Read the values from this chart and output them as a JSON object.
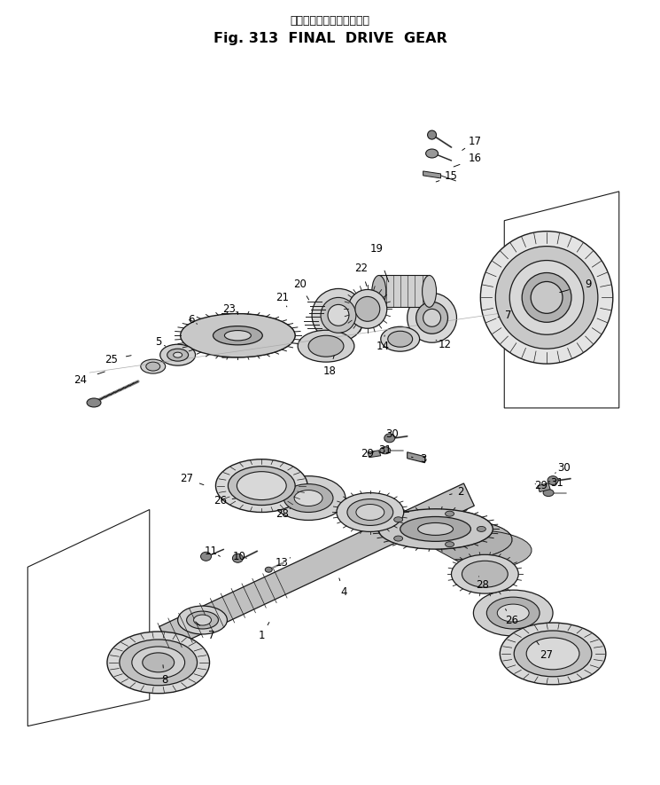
{
  "title_japanese": "ファイナルドライブギヤー",
  "title_english": "Fig. 313  FINAL  DRIVE  GEAR",
  "bg_color": "#ffffff",
  "line_color": "#1a1a1a",
  "fig_width": 7.45,
  "fig_height": 8.85,
  "dpi": 100,
  "upper_labels": [
    [
      "17",
      537,
      158,
      520,
      170
    ],
    [
      "16",
      537,
      178,
      510,
      188
    ],
    [
      "15",
      510,
      198,
      490,
      205
    ],
    [
      "9",
      665,
      320,
      630,
      330
    ],
    [
      "7",
      575,
      355,
      560,
      358
    ],
    [
      "12",
      503,
      388,
      490,
      382
    ],
    [
      "19",
      425,
      280,
      440,
      320
    ],
    [
      "22",
      408,
      302,
      415,
      325
    ],
    [
      "14",
      432,
      390,
      435,
      375
    ],
    [
      "18",
      372,
      418,
      378,
      398
    ],
    [
      "20",
      338,
      320,
      350,
      340
    ],
    [
      "21",
      318,
      335,
      325,
      348
    ],
    [
      "23",
      258,
      348,
      268,
      352
    ],
    [
      "6",
      215,
      360,
      222,
      365
    ],
    [
      "5",
      178,
      385,
      186,
      390
    ],
    [
      "25",
      125,
      405,
      150,
      400
    ],
    [
      "24",
      90,
      428,
      120,
      418
    ]
  ],
  "lower_labels": [
    [
      "30",
      443,
      490,
      432,
      498
    ],
    [
      "31",
      435,
      508,
      428,
      510
    ],
    [
      "29",
      415,
      512,
      422,
      510
    ],
    [
      "3",
      478,
      518,
      462,
      515
    ],
    [
      "27",
      210,
      540,
      232,
      548
    ],
    [
      "26",
      248,
      565,
      268,
      562
    ],
    [
      "28",
      318,
      580,
      330,
      572
    ],
    [
      "13",
      318,
      635,
      330,
      628
    ],
    [
      "1",
      295,
      718,
      305,
      700
    ],
    [
      "4",
      388,
      668,
      382,
      650
    ],
    [
      "2",
      520,
      555,
      508,
      558
    ],
    [
      "30",
      638,
      528,
      625,
      535
    ],
    [
      "31",
      630,
      545,
      620,
      543
    ],
    [
      "29",
      612,
      548,
      605,
      546
    ],
    [
      "28",
      545,
      660,
      540,
      648
    ],
    [
      "26",
      578,
      700,
      570,
      685
    ],
    [
      "27",
      618,
      740,
      605,
      722
    ],
    [
      "10",
      270,
      628,
      278,
      630
    ],
    [
      "11",
      238,
      622,
      248,
      628
    ],
    [
      "7",
      238,
      718,
      218,
      700
    ],
    [
      "8",
      185,
      768,
      183,
      748
    ]
  ]
}
